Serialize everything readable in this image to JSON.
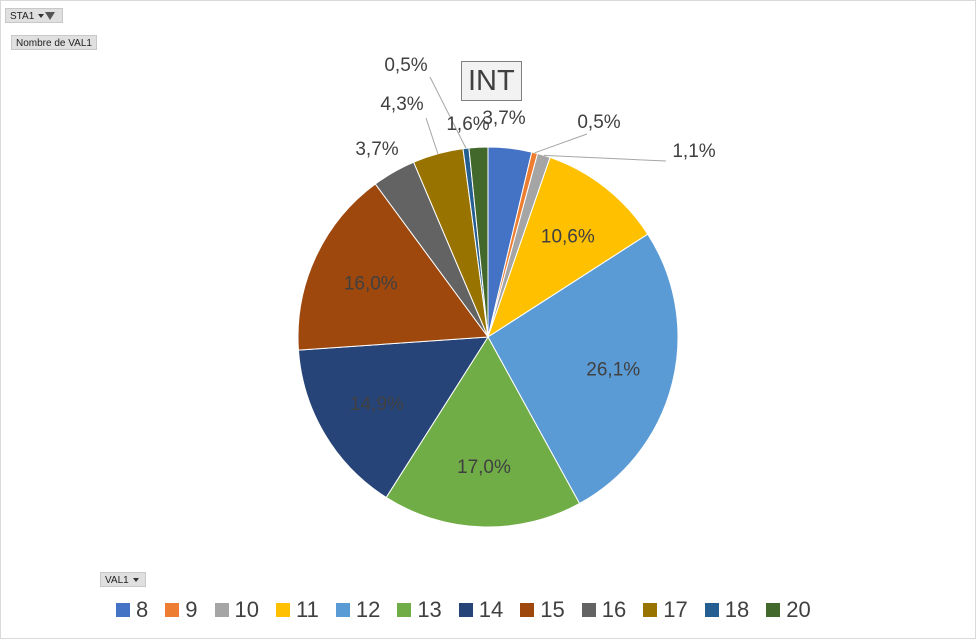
{
  "filter_field": {
    "label": "STA1"
  },
  "value_field": {
    "label": "Nombre de VAL1"
  },
  "axis_field": {
    "label": "VAL1"
  },
  "chart_data": {
    "type": "pie",
    "title": "INT",
    "legend_position": "bottom",
    "categories": [
      "8",
      "9",
      "10",
      "11",
      "12",
      "13",
      "14",
      "15",
      "16",
      "17",
      "18",
      "20"
    ],
    "values": [
      3.7,
      0.5,
      1.1,
      10.6,
      26.1,
      17.0,
      14.9,
      16.0,
      3.7,
      4.3,
      0.5,
      1.6
    ],
    "labels": [
      "3,7%",
      "0,5%",
      "1,1%",
      "10,6%",
      "26,1%",
      "17,0%",
      "14,9%",
      "16,0%",
      "3,7%",
      "4,3%",
      "0,5%",
      "1,6%"
    ],
    "colors": [
      "#4472c4",
      "#ed7d31",
      "#a5a5a5",
      "#ffc000",
      "#5b9bd5",
      "#70ad47",
      "#264478",
      "#9e480e",
      "#636363",
      "#997300",
      "#255e91",
      "#43682b"
    ]
  }
}
